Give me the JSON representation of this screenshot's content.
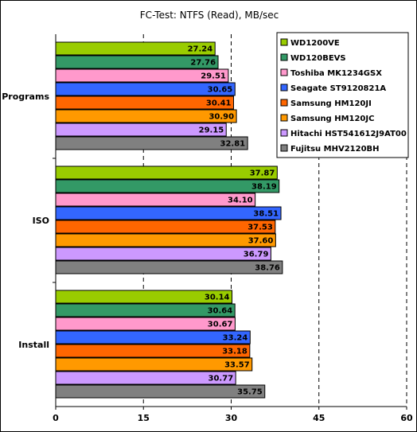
{
  "chart_data": {
    "type": "bar",
    "orientation": "horizontal",
    "title": "FC-Test: NTFS (Read), MB/sec",
    "categories": [
      "Programs",
      "ISO",
      "Install"
    ],
    "xlim": [
      0,
      60
    ],
    "xticks": [
      0,
      15,
      30,
      45,
      60
    ],
    "grid": true,
    "legend_position": "top-right",
    "series": [
      {
        "name": "WD1200VE",
        "color": "#99CC00",
        "values": [
          27.24,
          37.87,
          30.14
        ]
      },
      {
        "name": "WD120BEVS",
        "color": "#339966",
        "values": [
          27.76,
          38.19,
          30.64
        ]
      },
      {
        "name": "Toshiba MK1234GSX",
        "color": "#FF99CC",
        "values": [
          29.51,
          34.1,
          30.67
        ]
      },
      {
        "name": "Seagate ST9120821A",
        "color": "#3366FF",
        "values": [
          30.65,
          38.51,
          33.24
        ]
      },
      {
        "name": "Samsung HM120JI",
        "color": "#FF6600",
        "values": [
          30.41,
          37.53,
          33.18
        ]
      },
      {
        "name": "Samsung HM120JC",
        "color": "#FF9900",
        "values": [
          30.9,
          37.6,
          33.57
        ]
      },
      {
        "name": "Hitachi HST541612J9AT00",
        "color": "#CC99FF",
        "values": [
          29.15,
          36.79,
          30.77
        ]
      },
      {
        "name": "Fujitsu MHV2120BH",
        "color": "#808080",
        "values": [
          32.81,
          38.76,
          35.75
        ]
      }
    ],
    "value_labels": [
      [
        "27.24",
        "37.87",
        "30.14"
      ],
      [
        "27.76",
        "38.19",
        "30.64"
      ],
      [
        "29.51",
        "34.10",
        "30.67"
      ],
      [
        "30.65",
        "38.51",
        "33.24"
      ],
      [
        "30.41",
        "37.53",
        "33.18"
      ],
      [
        "30.90",
        "37.60",
        "33.57"
      ],
      [
        "29.15",
        "36.79",
        "30.77"
      ],
      [
        "32.81",
        "38.76",
        "35.75"
      ]
    ]
  }
}
